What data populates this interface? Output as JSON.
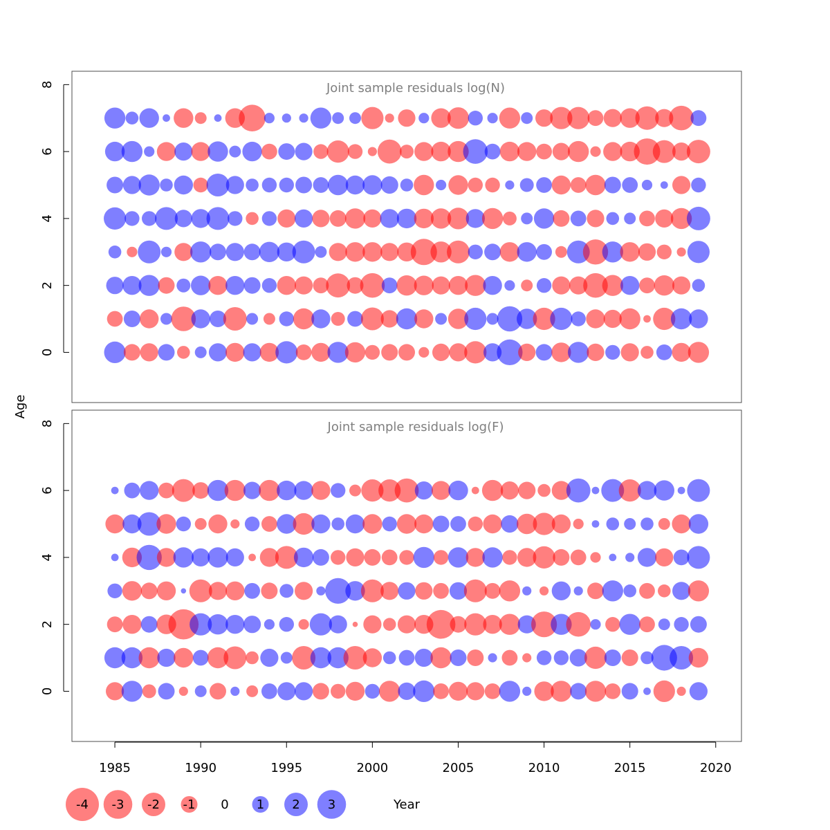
{
  "chart_data": {
    "type": "scatter",
    "subtype": "bubble",
    "xlabel": "Year",
    "ylabel": "Age",
    "xlim": [
      1982.5,
      2021.5
    ],
    "colors": {
      "negative": "#ff0000",
      "positive": "#0000ff",
      "bubble_alpha": 0.5
    },
    "x_ticks": [
      1985,
      1990,
      1995,
      2000,
      2005,
      2010,
      2015,
      2020
    ],
    "x_tick_labels": [
      "1985",
      "1990",
      "1995",
      "2000",
      "2005",
      "2010",
      "2015",
      "2020"
    ],
    "years": [
      1985,
      1986,
      1987,
      1988,
      1989,
      1990,
      1991,
      1992,
      1993,
      1994,
      1995,
      1996,
      1997,
      1998,
      1999,
      2000,
      2001,
      2002,
      2003,
      2004,
      2005,
      2006,
      2007,
      2008,
      2009,
      2010,
      2011,
      2012,
      2013,
      2014,
      2015,
      2016,
      2017,
      2018,
      2019
    ],
    "panels": [
      {
        "title": "Joint sample residuals log(N)",
        "ylim": [
          -1.5,
          8.4
        ],
        "y_ticks": [
          0,
          2,
          4,
          6,
          8
        ],
        "y_tick_labels": [
          "0",
          "2",
          "4",
          "6",
          "8"
        ],
        "ages": [
          7,
          6,
          5,
          4,
          3,
          2,
          1,
          0
        ],
        "residuals": [
          [
            1.6,
            0.6,
            1.4,
            0.2,
            -1.4,
            -0.5,
            0.2,
            -1.4,
            -2.6,
            0.4,
            0.3,
            0.3,
            1.6,
            0.5,
            0.5,
            -1.8,
            -0.3,
            -1.1,
            0.4,
            -1.4,
            -1.7,
            0.8,
            0.4,
            -1.6,
            0.5,
            -1.1,
            -1.8,
            -1.8,
            -0.9,
            -1.2,
            -1.4,
            -2.0,
            -1.2,
            -2.2,
            0.9
          ],
          [
            1.4,
            1.6,
            0.4,
            -1.3,
            1.2,
            -1.3,
            1.5,
            0.5,
            1.4,
            -0.9,
            1.0,
            1.1,
            -0.8,
            -1.8,
            -0.8,
            -0.3,
            -2.1,
            -0.7,
            -1.3,
            -1.4,
            -1.6,
            2.2,
            0.9,
            -1.4,
            -1.3,
            -0.9,
            -1.1,
            -1.6,
            -0.4,
            -1.3,
            -1.4,
            -2.5,
            -1.9,
            -1.2,
            -2.0
          ],
          [
            1.0,
            1.2,
            1.6,
            0.6,
            1.3,
            -0.8,
            1.9,
            1.2,
            0.6,
            0.8,
            0.8,
            1.0,
            0.9,
            1.5,
            1.3,
            1.4,
            1.1,
            0.6,
            -1.5,
            0.4,
            -1.4,
            -0.8,
            -0.8,
            0.3,
            0.7,
            0.9,
            -1.3,
            -0.9,
            -1.5,
            1.0,
            0.9,
            0.4,
            0.2,
            -1.2,
            0.8
          ],
          [
            1.8,
            0.8,
            0.8,
            1.9,
            1.1,
            1.3,
            1.9,
            0.8,
            -0.6,
            0.8,
            -1.2,
            1.2,
            -1.1,
            -1.0,
            -1.5,
            -1.2,
            1.3,
            1.4,
            -1.4,
            -1.5,
            -1.7,
            1.3,
            -1.6,
            -0.7,
            0.5,
            1.5,
            -1.0,
            0.9,
            -1.1,
            0.6,
            0.5,
            -0.9,
            -1.2,
            -1.6,
            2.0
          ],
          [
            0.6,
            -0.4,
            1.9,
            0.4,
            -1.2,
            1.6,
            1.0,
            1.2,
            1.0,
            1.5,
            1.3,
            1.9,
            0.5,
            -1.2,
            -1.4,
            -1.4,
            -1.2,
            -1.3,
            -2.5,
            -1.6,
            -1.9,
            0.8,
            1.0,
            -1.4,
            1.4,
            0.9,
            -0.5,
            1.9,
            -2.3,
            1.6,
            -1.4,
            -1.1,
            -0.8,
            -0.3,
            1.8
          ],
          [
            1.1,
            1.3,
            1.6,
            -1.0,
            0.7,
            1.4,
            -1.3,
            1.3,
            1.0,
            0.8,
            -1.3,
            -1.2,
            -0.9,
            -2.1,
            -1.0,
            -2.2,
            0.9,
            -1.5,
            -1.4,
            -1.2,
            -1.3,
            -1.6,
            1.3,
            0.4,
            -0.5,
            0.8,
            -1.2,
            -1.2,
            -2.2,
            -1.6,
            1.3,
            -0.9,
            -1.5,
            -1.2,
            0.6
          ],
          [
            -0.9,
            1.0,
            -1.3,
            0.5,
            -2.2,
            1.3,
            1.0,
            -2.0,
            0.5,
            -0.5,
            0.8,
            -1.6,
            1.3,
            -0.7,
            0.9,
            -1.9,
            -1.1,
            1.6,
            -1.3,
            0.5,
            -1.5,
            1.8,
            0.5,
            2.3,
            1.5,
            -1.8,
            1.8,
            0.8,
            -1.3,
            -1.2,
            -1.6,
            -0.2,
            -1.8,
            1.6,
            1.3
          ],
          [
            1.7,
            -1.0,
            -1.2,
            1.0,
            -0.6,
            0.5,
            1.2,
            -1.3,
            1.2,
            -1.3,
            1.8,
            -0.9,
            -1.3,
            1.6,
            -1.5,
            -0.8,
            -1.0,
            -1.0,
            -0.4,
            -1.1,
            -1.2,
            -1.8,
            1.2,
            2.4,
            -1.1,
            1.0,
            -1.4,
            1.6,
            -1.1,
            0.8,
            -1.2,
            -0.6,
            0.9,
            -1.3,
            -1.6
          ]
        ]
      },
      {
        "title": "Joint sample residuals log(F)",
        "ylim": [
          -1.5,
          8.4
        ],
        "y_ticks": [
          0,
          2,
          4,
          6,
          8
        ],
        "y_tick_labels": [
          "0",
          "2",
          "4",
          "6",
          "8"
        ],
        "ages": [
          6,
          5,
          4,
          3,
          2,
          1,
          0
        ],
        "residuals": [
          [
            0.2,
            0.9,
            1.3,
            -0.9,
            -1.9,
            -1.0,
            1.6,
            -1.6,
            1.1,
            -1.6,
            1.4,
            1.3,
            -1.3,
            0.8,
            -0.5,
            -1.8,
            -1.8,
            -2.1,
            1.2,
            -1.3,
            1.4,
            -0.2,
            -1.6,
            -1.2,
            -1.1,
            -0.6,
            -1.3,
            2.1,
            0.2,
            1.9,
            -1.8,
            1.3,
            1.5,
            0.2,
            1.9
          ],
          [
            -1.3,
            1.3,
            2.0,
            -1.4,
            0.8,
            -0.5,
            -1.3,
            -0.3,
            0.8,
            -0.9,
            1.4,
            -1.7,
            1.3,
            0.6,
            1.3,
            -1.4,
            0.8,
            -1.4,
            -1.3,
            1.0,
            0.9,
            -0.8,
            -1.3,
            1.1,
            -1.5,
            -1.8,
            -1.3,
            -0.4,
            0.2,
            0.6,
            0.5,
            0.6,
            -0.5,
            -1.3,
            1.4
          ],
          [
            0.2,
            -1.4,
            2.3,
            -1.3,
            1.5,
            1.2,
            1.5,
            1.2,
            -0.2,
            -1.3,
            -1.9,
            1.4,
            1.0,
            -0.8,
            -1.2,
            -1.0,
            -0.9,
            -0.8,
            1.6,
            -0.8,
            1.5,
            -1.3,
            1.5,
            -0.8,
            -1.3,
            -1.8,
            -1.0,
            -0.9,
            -0.4,
            0.2,
            0.3,
            1.3,
            -1.2,
            0.9,
            1.9
          ],
          [
            0.8,
            -1.4,
            -1.0,
            -1.3,
            0.1,
            -1.9,
            -1.2,
            -1.3,
            0.9,
            -1.0,
            0.7,
            -1.2,
            0.3,
            2.4,
            1.4,
            -1.9,
            -1.2,
            1.1,
            -1.1,
            -0.9,
            1.1,
            -1.9,
            -0.9,
            -1.6,
            0.3,
            -0.3,
            1.3,
            0.3,
            -1.0,
            1.6,
            0.6,
            -0.9,
            -0.6,
            1.2,
            -1.6
          ],
          [
            -0.9,
            -1.3,
            1.0,
            -1.4,
            -3.3,
            1.8,
            1.5,
            1.3,
            1.1,
            0.4,
            0.8,
            -0.4,
            1.8,
            1.2,
            -0.1,
            -1.2,
            -0.6,
            -1.2,
            -1.3,
            -3.0,
            -1.0,
            -1.8,
            -1.3,
            -1.6,
            1.2,
            -2.4,
            1.6,
            -2.2,
            0.4,
            -0.8,
            1.6,
            -0.9,
            0.5,
            0.8,
            1.0
          ],
          [
            1.6,
            1.6,
            -1.6,
            1.2,
            -1.4,
            0.9,
            -1.6,
            -1.9,
            -0.6,
            1.2,
            0.5,
            -2.0,
            1.6,
            1.6,
            -2.0,
            -1.3,
            0.6,
            0.9,
            1.2,
            -1.6,
            1.0,
            -1.0,
            0.3,
            -0.9,
            -0.3,
            0.8,
            0.8,
            1.1,
            -1.8,
            1.0,
            -1.0,
            0.6,
            2.4,
            2.0,
            -1.4
          ],
          [
            -1.2,
            1.6,
            -0.7,
            1.0,
            -0.3,
            0.5,
            -1.0,
            0.3,
            -0.5,
            0.9,
            1.2,
            1.2,
            -1.0,
            -0.8,
            -1.3,
            0.8,
            -1.6,
            1.1,
            1.7,
            -0.9,
            -1.3,
            -1.2,
            -0.9,
            1.6,
            0.3,
            -1.4,
            -1.6,
            1.0,
            -1.6,
            -0.9,
            1.0,
            0.2,
            -1.7,
            -0.3,
            1.2
          ]
        ]
      }
    ],
    "legend": {
      "labels": [
        "-4",
        "-3",
        "-2",
        "-1",
        "0",
        "1",
        "2",
        "3"
      ],
      "values": [
        -4,
        -3,
        -2,
        -1,
        0,
        1,
        2,
        3
      ]
    }
  }
}
